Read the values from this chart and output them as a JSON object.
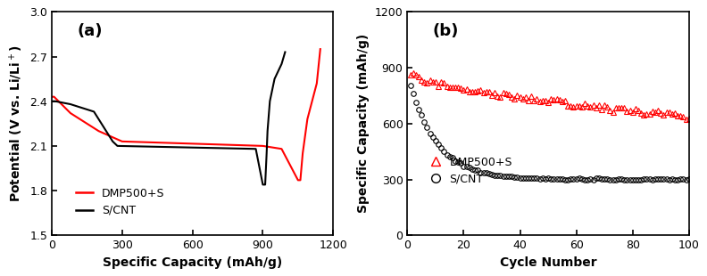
{
  "panel_a": {
    "title": "(a)",
    "xlabel": "Specific Capacity (mAh/g)",
    "ylabel": "Potential (V vs. Li/Li$^+$)",
    "xlim": [
      0,
      1200
    ],
    "ylim": [
      1.5,
      3.0
    ],
    "xticks": [
      0,
      300,
      600,
      900,
      1200
    ],
    "yticks": [
      1.5,
      1.8,
      2.1,
      2.4,
      2.7,
      3.0
    ]
  },
  "panel_b": {
    "title": "(b)",
    "xlabel": "Cycle Number",
    "ylabel": "Specific Capacity (mAh/g)",
    "xlim": [
      0,
      100
    ],
    "ylim": [
      0,
      1200
    ],
    "xticks": [
      0,
      20,
      40,
      60,
      80,
      100
    ],
    "yticks": [
      0,
      300,
      600,
      900,
      1200
    ]
  },
  "colors": {
    "red": "#ff0000",
    "black": "#000000"
  }
}
